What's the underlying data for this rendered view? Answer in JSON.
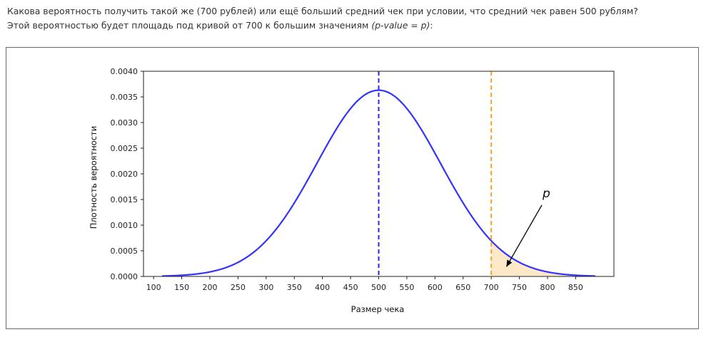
{
  "question": {
    "line1": "Какова вероятность получить такой же (700 рублей) или ещё больший средний чек при условии, что средний чек равен 500 рублям?",
    "line2_prefix": "Этой вероятностью будет площадь под кривой от 700 к большим значениям ",
    "line2_italic": "(p-value = p)",
    "line2_suffix": ":"
  },
  "chart_data": {
    "type": "line",
    "title": "",
    "xlabel": "Размер чека",
    "ylabel": "Плотность вероятности",
    "xlim": [
      82,
      918
    ],
    "ylim": [
      0,
      0.004
    ],
    "x_ticks": [
      100,
      150,
      200,
      250,
      300,
      350,
      400,
      450,
      500,
      550,
      600,
      650,
      700,
      750,
      800,
      850
    ],
    "y_ticks": [
      "0.0000",
      "0.0005",
      "0.0010",
      "0.0015",
      "0.0020",
      "0.0025",
      "0.0030",
      "0.0035",
      "0.0040"
    ],
    "grid": false,
    "series": [
      {
        "type": "normal_pdf",
        "mean": 500,
        "sd": 110,
        "peak": 0.00363,
        "x_range": [
          115,
          885
        ],
        "color": "#3333ff"
      }
    ],
    "vlines": [
      {
        "x": 500,
        "color": "#2a2ad6",
        "style": "dashed"
      },
      {
        "x": 700,
        "color": "#f5a623",
        "style": "dashed"
      }
    ],
    "shaded_region": {
      "from": 700,
      "to": 885,
      "color": "#fde9c7"
    },
    "annotation": {
      "text": "p",
      "text_x": 795,
      "text_y": 0.00135,
      "arrow_to_x": 727,
      "arrow_to_y": 0.00019
    }
  }
}
